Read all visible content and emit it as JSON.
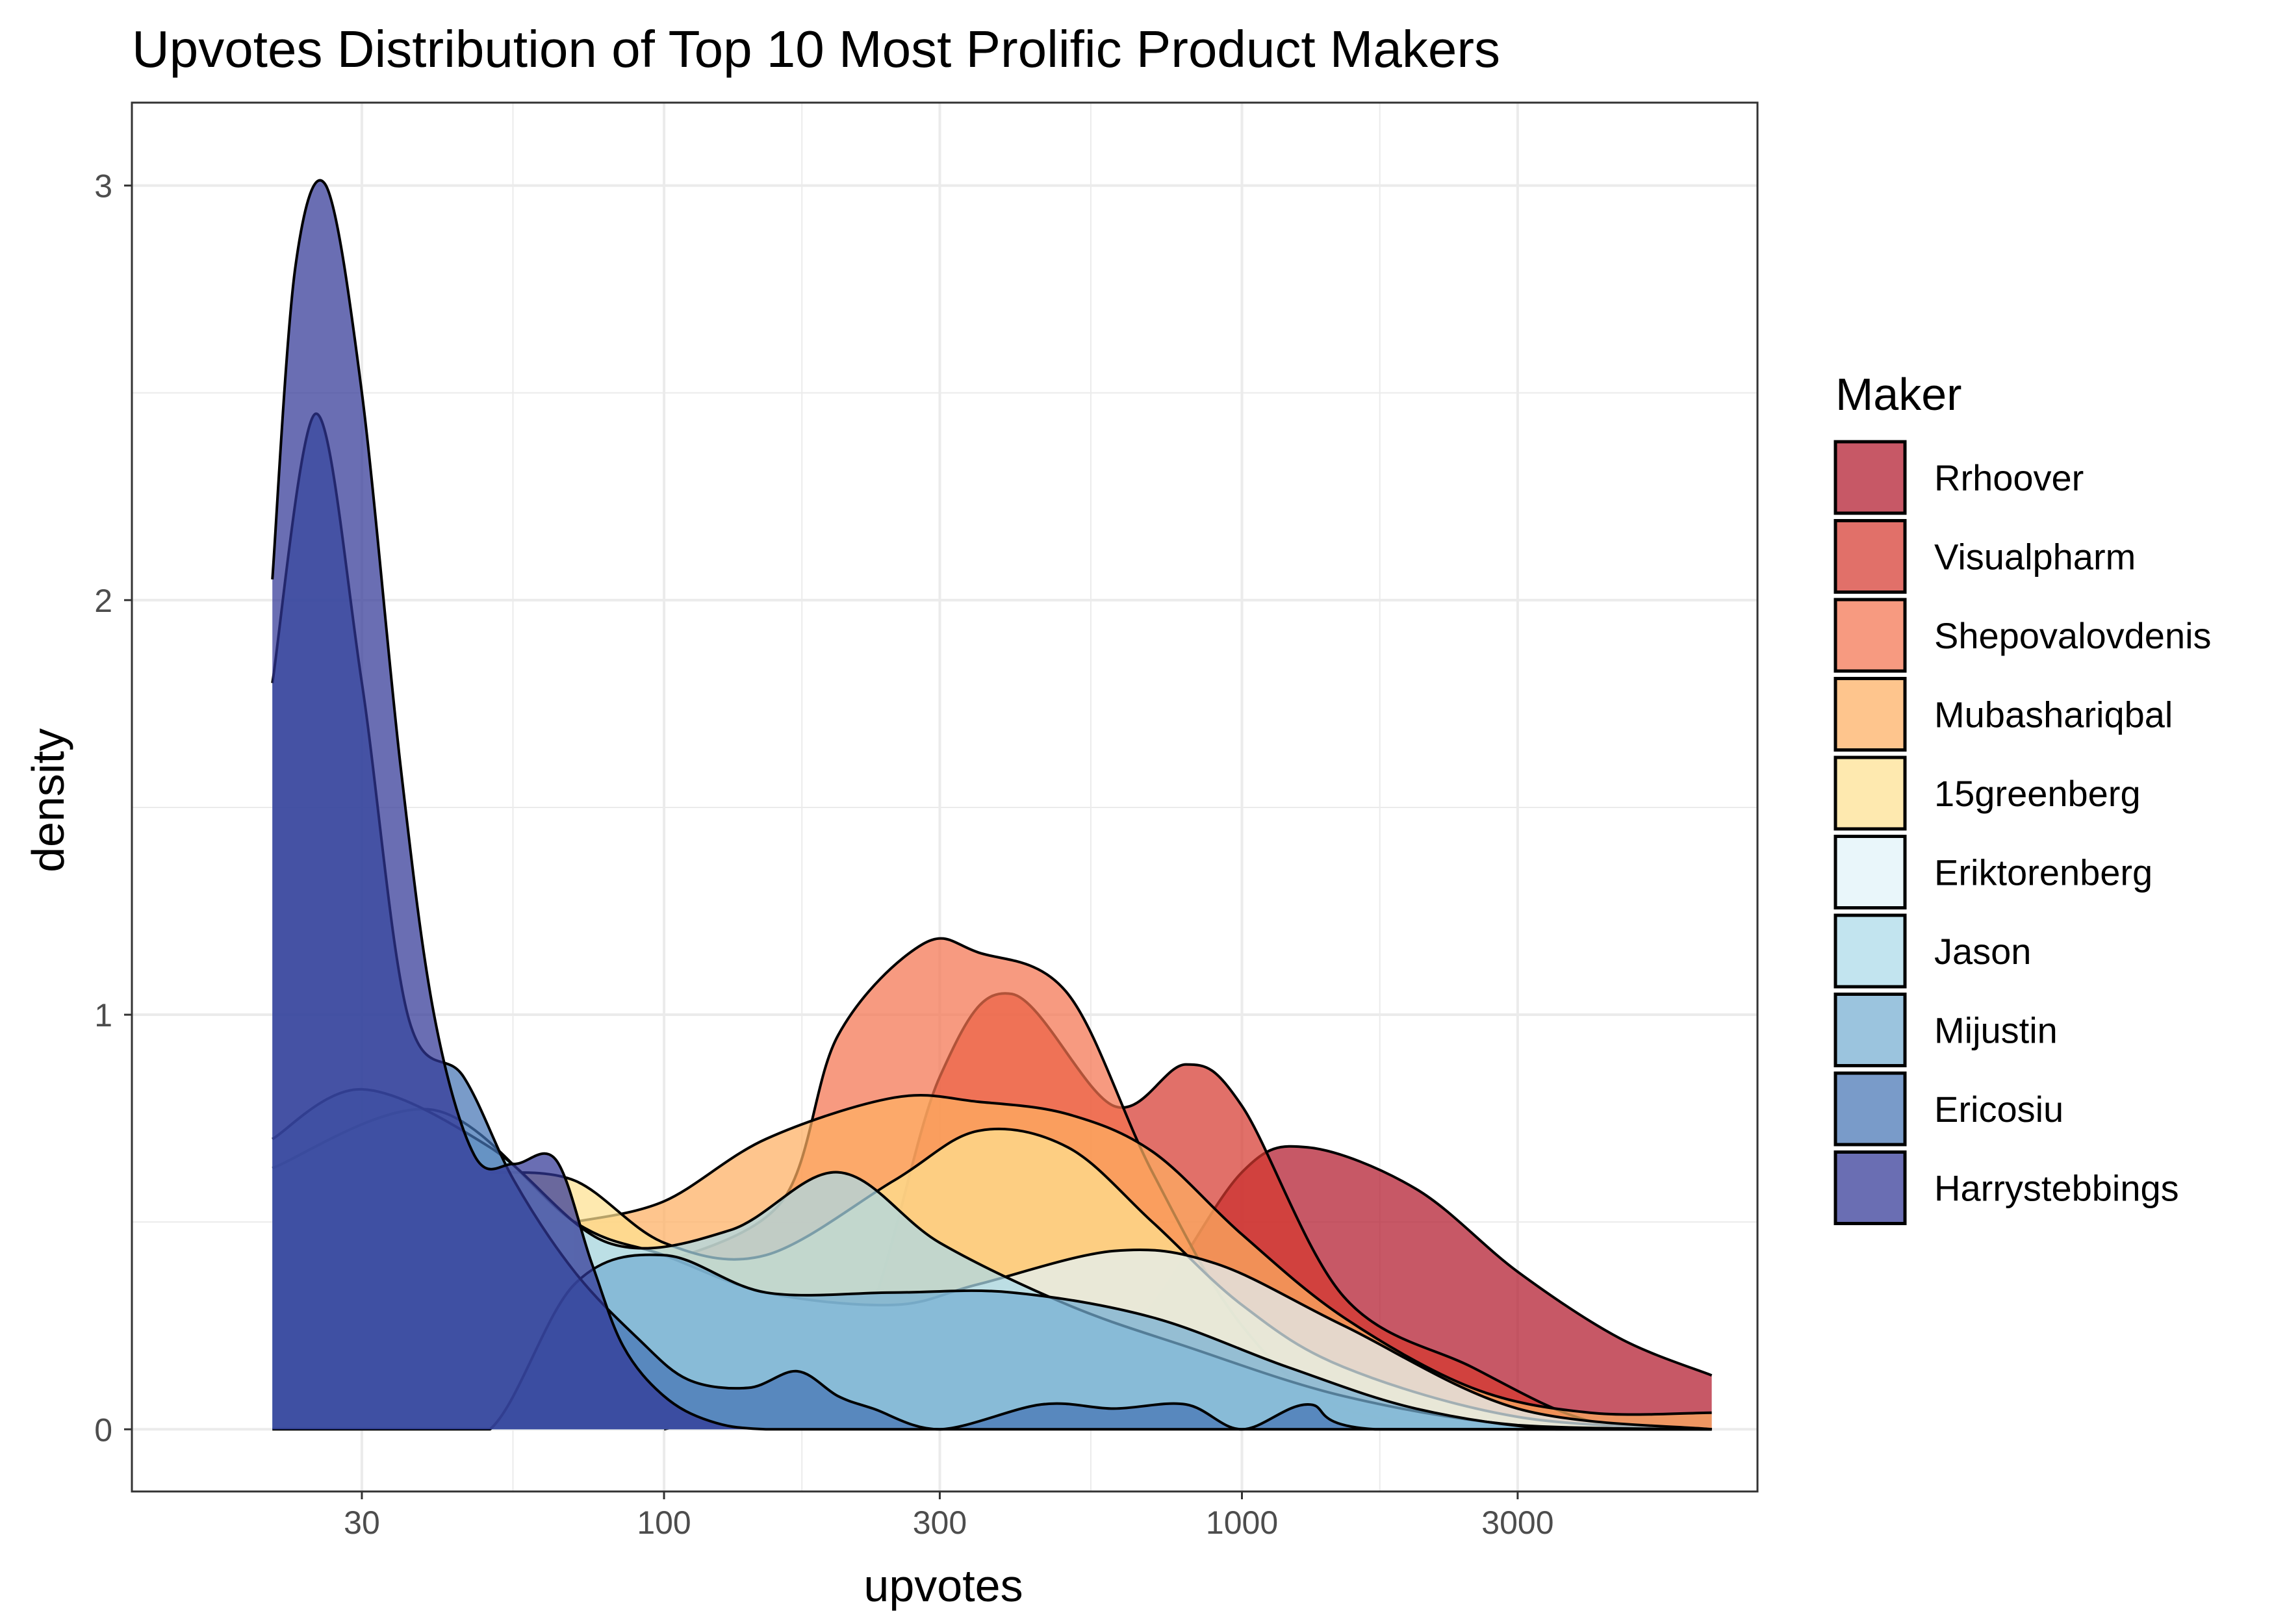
{
  "chart_data": {
    "type": "area",
    "title": "Upvotes Distribution of Top 10 Most Prolific Product Makers",
    "xlabel": "upvotes",
    "ylabel": "density",
    "x_scale": "log10",
    "xlim": [
      12,
      7800
    ],
    "ylim": [
      -0.15,
      3.2
    ],
    "x_ticks": [
      30,
      100,
      300,
      1000,
      3000
    ],
    "x_tick_labels": [
      "30",
      "100",
      "300",
      "1000",
      "3000"
    ],
    "y_ticks": [
      0,
      1,
      2,
      3
    ],
    "y_tick_labels": [
      "0",
      "1",
      "2",
      "3"
    ],
    "grid": true,
    "legend": {
      "title": "Maker",
      "position": "right",
      "entries": [
        "Rrhoover",
        "Visualpharm",
        "Shepovalovdenis",
        "Mubashariqbal",
        "15greenberg",
        "Eriktorenberg",
        "Jason",
        "Mijustin",
        "Ericosiu",
        "Harrystebbings"
      ]
    },
    "series": [
      {
        "name": "Rrhoover",
        "color": "#b2182b",
        "x": [
          300,
          500,
          700,
          1000,
          1300,
          2000,
          3000,
          4500,
          6500
        ],
        "values": [
          0.0,
          0.08,
          0.3,
          0.62,
          0.68,
          0.58,
          0.38,
          0.22,
          0.13
        ]
      },
      {
        "name": "Visualpharm",
        "color": "#d6392f",
        "x": [
          100,
          200,
          300,
          400,
          600,
          800,
          1000,
          1500,
          2500,
          4000,
          6500
        ],
        "values": [
          0.0,
          0.12,
          0.85,
          1.05,
          0.78,
          0.88,
          0.78,
          0.32,
          0.15,
          0.02,
          0.0
        ]
      },
      {
        "name": "Shepovalovdenis",
        "color": "#f4734f",
        "x": [
          100,
          160,
          200,
          280,
          350,
          500,
          700,
          1000,
          1500,
          3000,
          6500
        ],
        "values": [
          0.4,
          0.55,
          0.95,
          1.17,
          1.15,
          1.05,
          0.62,
          0.25,
          0.05,
          0.0,
          0.0
        ]
      },
      {
        "name": "Mubashariqbal",
        "color": "#fdae61",
        "x": [
          70,
          100,
          150,
          250,
          350,
          500,
          700,
          1000,
          1500,
          2500,
          4000,
          6500
        ],
        "values": [
          0.5,
          0.55,
          0.7,
          0.8,
          0.79,
          0.76,
          0.67,
          0.47,
          0.27,
          0.1,
          0.04,
          0.04
        ]
      },
      {
        "name": "15greenberg",
        "color": "#fee090",
        "x": [
          50,
          70,
          100,
          150,
          250,
          350,
          500,
          700,
          1000,
          1500,
          3000,
          6500
        ],
        "values": [
          0.62,
          0.6,
          0.45,
          0.42,
          0.6,
          0.72,
          0.68,
          0.5,
          0.3,
          0.15,
          0.03,
          0.0
        ]
      },
      {
        "name": "Eriktorenberg",
        "color": "#e0f3f8",
        "x": [
          21,
          40,
          70,
          100,
          150,
          250,
          350,
          600,
          900,
          1500,
          3000,
          6500
        ],
        "values": [
          0.63,
          0.77,
          0.5,
          0.42,
          0.33,
          0.3,
          0.35,
          0.43,
          0.4,
          0.25,
          0.05,
          0.0
        ]
      },
      {
        "name": "Jason",
        "color": "#abd9e9",
        "x": [
          21,
          30,
          50,
          80,
          130,
          200,
          300,
          500,
          800,
          1500,
          3000,
          6500
        ],
        "values": [
          0.7,
          0.82,
          0.68,
          0.45,
          0.48,
          0.62,
          0.45,
          0.3,
          0.2,
          0.08,
          0.01,
          0.0
        ]
      },
      {
        "name": "Mijustin",
        "color": "#74add1",
        "x": [
          21,
          36,
          50,
          70,
          100,
          150,
          250,
          400,
          700,
          1200,
          2000,
          3500,
          6500
        ],
        "values": [
          0.0,
          0.0,
          0.0,
          0.35,
          0.42,
          0.33,
          0.33,
          0.33,
          0.27,
          0.15,
          0.05,
          0.0,
          0.0
        ]
      },
      {
        "name": "Ericosiu",
        "color": "#4575b4",
        "x": [
          21,
          25,
          30,
          36,
          45,
          55,
          70,
          90,
          110,
          140,
          170,
          200,
          230,
          300,
          450,
          600,
          800,
          1000,
          1300,
          1700,
          6500
        ],
        "values": [
          1.8,
          2.45,
          1.8,
          1.0,
          0.85,
          0.6,
          0.38,
          0.22,
          0.12,
          0.1,
          0.14,
          0.08,
          0.05,
          0.0,
          0.06,
          0.05,
          0.06,
          0.0,
          0.06,
          0.0,
          0.0
        ]
      },
      {
        "name": "Harrystebbings",
        "color": "#313695",
        "x": [
          21,
          23,
          26,
          30,
          35,
          40,
          47,
          55,
          65,
          75,
          85,
          100,
          120,
          150,
          250,
          6500
        ],
        "values": [
          2.05,
          2.8,
          3.0,
          2.5,
          1.6,
          1.0,
          0.66,
          0.64,
          0.65,
          0.4,
          0.2,
          0.08,
          0.02,
          0.0,
          0.0,
          0.0
        ]
      }
    ]
  }
}
